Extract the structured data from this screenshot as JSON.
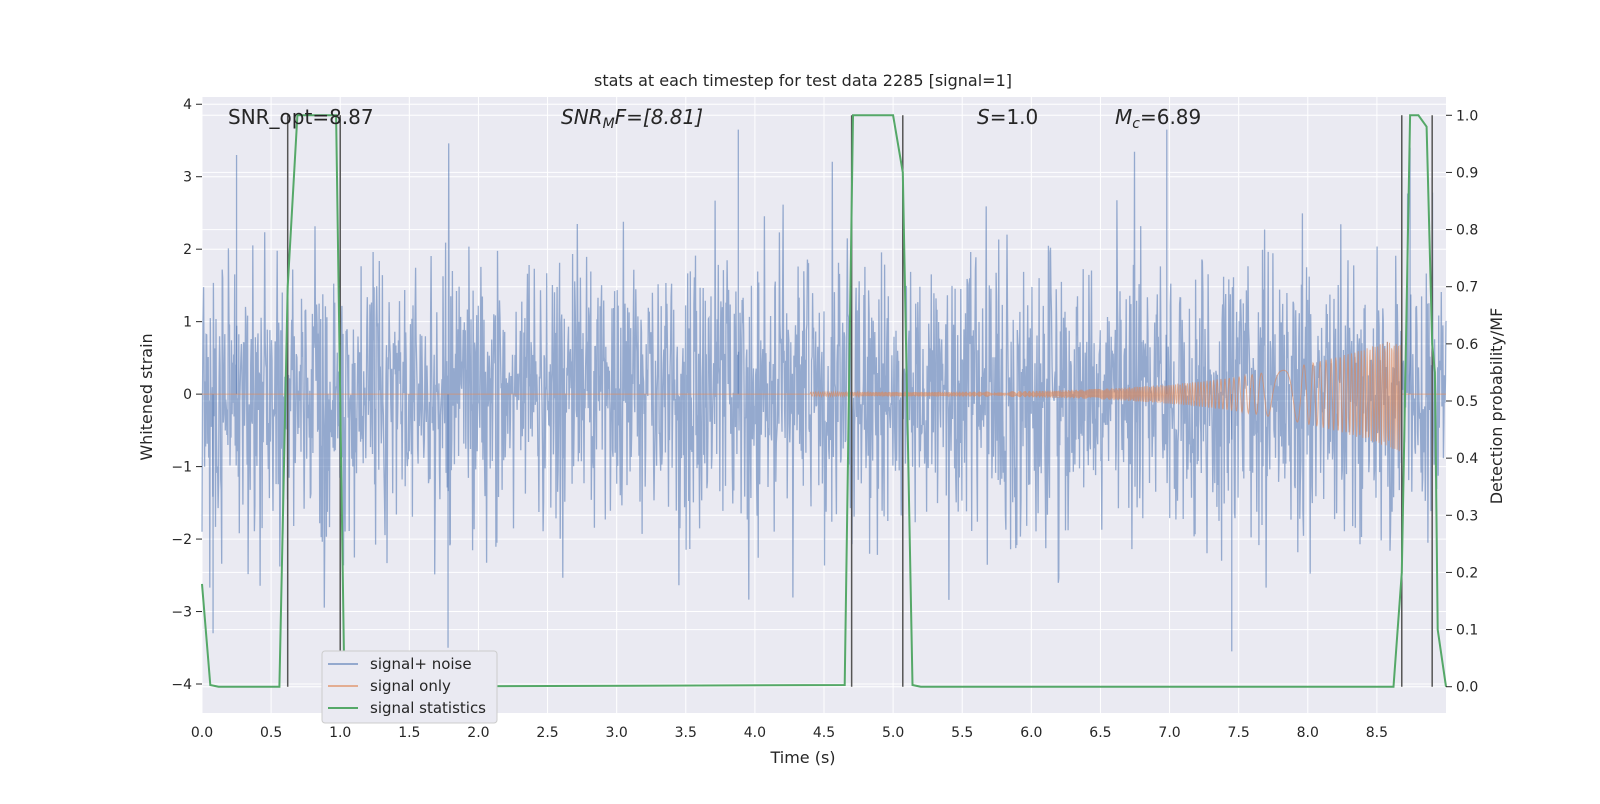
{
  "chart_data": {
    "type": "line",
    "title": "stats at each timestep for test data 2285 [signal=1]",
    "xlabel": "Time (s)",
    "ylabel": "Whitened strain",
    "y2label": "Detection probability/MF",
    "xlim": [
      0.0,
      9.0
    ],
    "ylim": [
      -4.4,
      4.1
    ],
    "y2lim": [
      -0.046,
      1.032
    ],
    "xticks": [
      "0.0",
      "0.5",
      "1.0",
      "1.5",
      "2.0",
      "2.5",
      "3.0",
      "3.5",
      "4.0",
      "4.5",
      "5.0",
      "5.5",
      "6.0",
      "6.5",
      "7.0",
      "7.5",
      "8.0",
      "8.5"
    ],
    "yticks": [
      "4",
      "3",
      "2",
      "1",
      "0",
      "−1",
      "−2",
      "−3",
      "−4"
    ],
    "y2ticks": [
      "1.0",
      "0.9",
      "0.8",
      "0.7",
      "0.6",
      "0.5",
      "0.4",
      "0.3",
      "0.2",
      "0.1",
      "0.0"
    ],
    "grid": true,
    "legend_position": "lower-left",
    "annotations": {
      "snr_opt": "SNR_opt=8.87",
      "snr_mf_main": "SNR",
      "snr_mf_sub": "M",
      "snr_mf_rest": "F=[8.81]",
      "s_main": "S",
      "s_rest": "=1.0",
      "mc_main": "M",
      "mc_sub": "c",
      "mc_rest": "=6.89"
    },
    "series": [
      {
        "name": "signal+ noise",
        "color": "#4c72b0",
        "noise_std": 0.95,
        "extreme_spikes": [
          [
            0.25,
            3.3
          ],
          [
            1.78,
            -3.5
          ],
          [
            3.88,
            3.65
          ],
          [
            6.98,
            3.65
          ],
          [
            7.45,
            -3.55
          ],
          [
            8.74,
            3.4
          ],
          [
            0.08,
            -3.3
          ]
        ]
      },
      {
        "name": "signal only",
        "color": "#dd8452",
        "chirp_start": 4.4,
        "chirp_end": 8.68,
        "amp_start": 0.03,
        "amp_end": 0.8,
        "f_start": 18,
        "f_end": 75
      },
      {
        "name": "signal statistics",
        "color": "#55a868",
        "x": [
          0.0,
          0.06,
          0.12,
          0.56,
          0.62,
          0.69,
          0.97,
          1.03,
          1.08,
          1.15,
          4.65,
          4.71,
          4.77,
          5.0,
          5.07,
          5.14,
          5.2,
          8.62,
          8.68,
          8.74,
          8.8,
          8.86,
          8.9,
          8.92,
          8.94,
          9.0
        ],
        "y": [
          0.18,
          0.003,
          0.0,
          0.0,
          0.7,
          1.0,
          1.0,
          0.0,
          0.0,
          0.0,
          0.003,
          1.0,
          1.0,
          1.0,
          0.9,
          0.003,
          0.0,
          0.0,
          0.2,
          1.0,
          1.0,
          0.98,
          0.6,
          0.55,
          0.1,
          0.0
        ]
      }
    ],
    "vlines": [
      0.62,
      1.0,
      4.7,
      5.07,
      8.68,
      8.9
    ]
  }
}
